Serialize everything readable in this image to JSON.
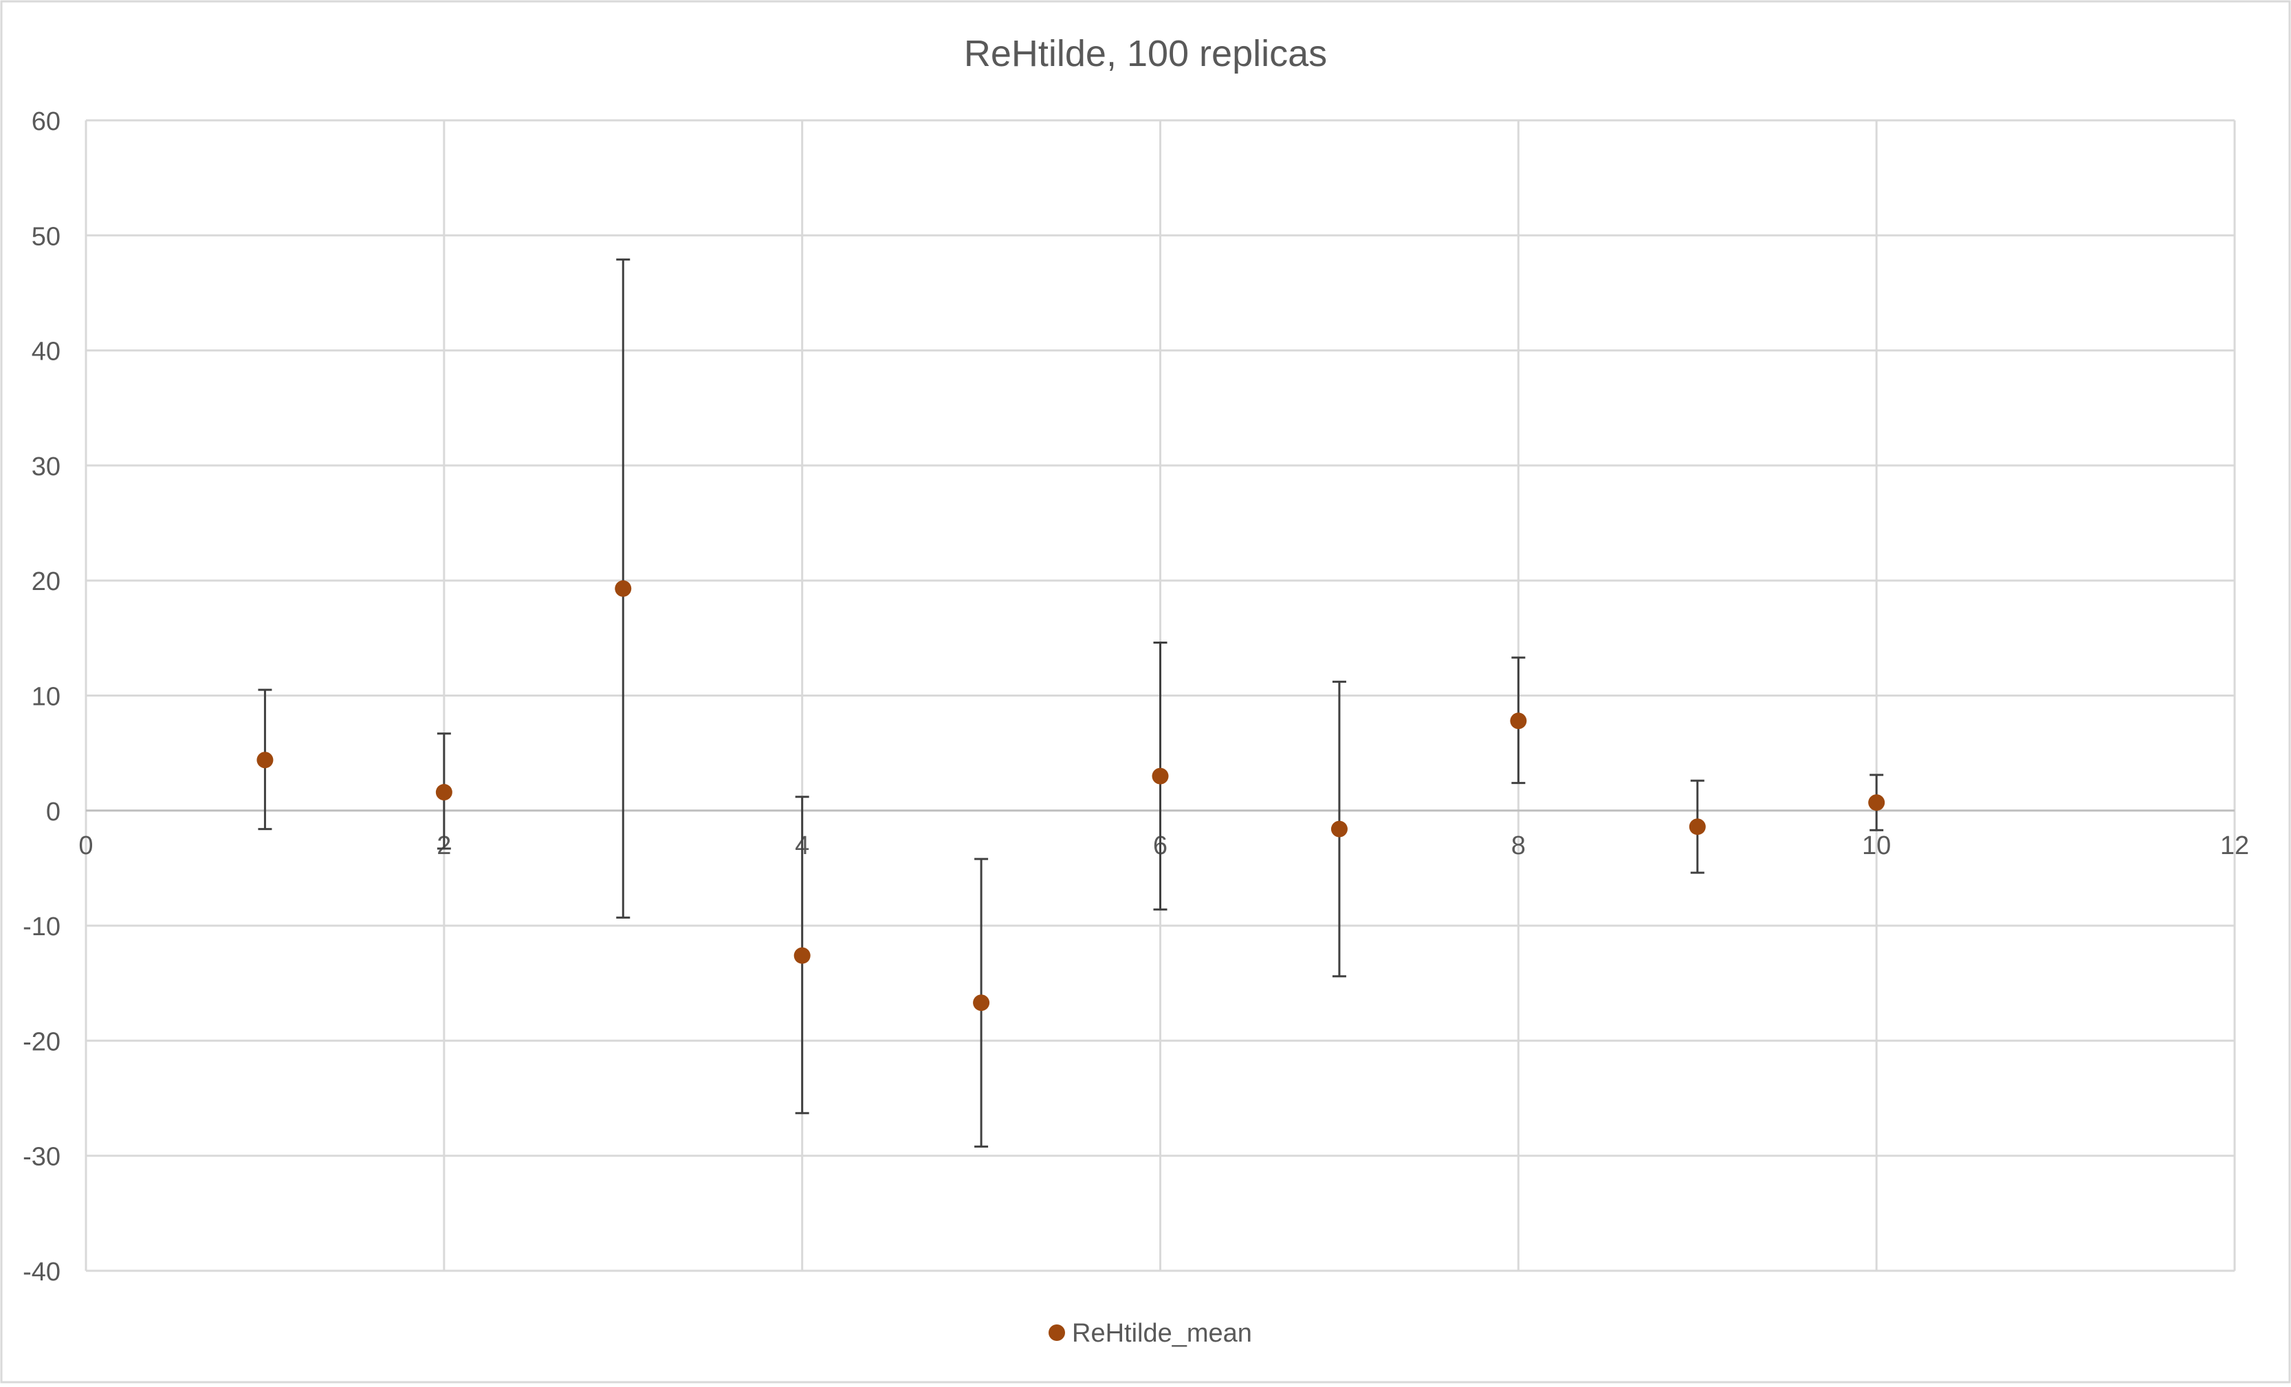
{
  "chart_data": {
    "type": "scatter",
    "title": "ReHtilde, 100 replicas",
    "xlabel": "",
    "ylabel": "",
    "xlim": [
      0,
      12
    ],
    "ylim": [
      -40,
      60
    ],
    "xticks": [
      0,
      2,
      4,
      6,
      8,
      10,
      12
    ],
    "yticks": [
      -40,
      -30,
      -20,
      -10,
      0,
      10,
      20,
      30,
      40,
      50,
      60
    ],
    "grid": true,
    "legend_position": "bottom",
    "series": [
      {
        "name": "ReHtilde_mean",
        "color": "#9E480E",
        "marker": "circle",
        "points": [
          {
            "x": 1,
            "y": 4.4,
            "err_low": -1.6,
            "err_high": 10.5
          },
          {
            "x": 2,
            "y": 1.6,
            "err_low": -3.3,
            "err_high": 6.7
          },
          {
            "x": 3,
            "y": 19.3,
            "err_low": -9.3,
            "err_high": 47.9
          },
          {
            "x": 4,
            "y": -12.6,
            "err_low": -26.3,
            "err_high": 1.2
          },
          {
            "x": 5,
            "y": -16.7,
            "err_low": -29.2,
            "err_high": -4.2
          },
          {
            "x": 6,
            "y": 3.0,
            "err_low": -8.6,
            "err_high": 14.6
          },
          {
            "x": 7,
            "y": -1.6,
            "err_low": -14.4,
            "err_high": 11.2
          },
          {
            "x": 8,
            "y": 7.8,
            "err_low": 2.4,
            "err_high": 13.3
          },
          {
            "x": 9,
            "y": -1.4,
            "err_low": -5.4,
            "err_high": 2.6
          },
          {
            "x": 10,
            "y": 0.7,
            "err_low": -1.7,
            "err_high": 3.1
          }
        ]
      }
    ]
  },
  "colors": {
    "gridline": "#d9d9d9",
    "axis_text": "#595959",
    "errorbar": "#404040",
    "border": "#d9d9d9"
  }
}
